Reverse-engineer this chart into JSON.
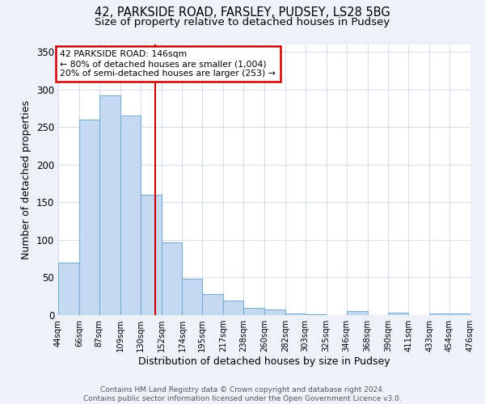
{
  "title_line1": "42, PARKSIDE ROAD, FARSLEY, PUDSEY, LS28 5BG",
  "title_line2": "Size of property relative to detached houses in Pudsey",
  "xlabel": "Distribution of detached houses by size in Pudsey",
  "ylabel": "Number of detached properties",
  "bar_edges": [
    44,
    66,
    87,
    109,
    130,
    152,
    174,
    195,
    217,
    238,
    260,
    282,
    303,
    325,
    346,
    368,
    390,
    411,
    433,
    454,
    476
  ],
  "bar_heights": [
    70,
    260,
    292,
    265,
    160,
    97,
    48,
    28,
    19,
    10,
    7,
    2,
    1,
    0,
    5,
    0,
    3,
    0,
    2,
    2
  ],
  "bar_color": "#c5d9f0",
  "bar_edge_color": "#7aafd4",
  "vline_x": 146,
  "vline_color": "#cc0000",
  "annotation_title": "42 PARKSIDE ROAD: 146sqm",
  "annotation_line2": "← 80% of detached houses are smaller (1,004)",
  "annotation_line3": "20% of semi-detached houses are larger (253) →",
  "annotation_box_color": "#cc0000",
  "ylim": [
    0,
    360
  ],
  "yticks": [
    0,
    50,
    100,
    150,
    200,
    250,
    300,
    350
  ],
  "tick_labels": [
    "44sqm",
    "66sqm",
    "87sqm",
    "109sqm",
    "130sqm",
    "152sqm",
    "174sqm",
    "195sqm",
    "217sqm",
    "238sqm",
    "260sqm",
    "282sqm",
    "303sqm",
    "325sqm",
    "346sqm",
    "368sqm",
    "390sqm",
    "411sqm",
    "433sqm",
    "454sqm",
    "476sqm"
  ],
  "footer_line1": "Contains HM Land Registry data © Crown copyright and database right 2024.",
  "footer_line2": "Contains public sector information licensed under the Open Government Licence v3.0.",
  "bg_color": "#eef2f8",
  "plot_bg_color": "#ffffff"
}
